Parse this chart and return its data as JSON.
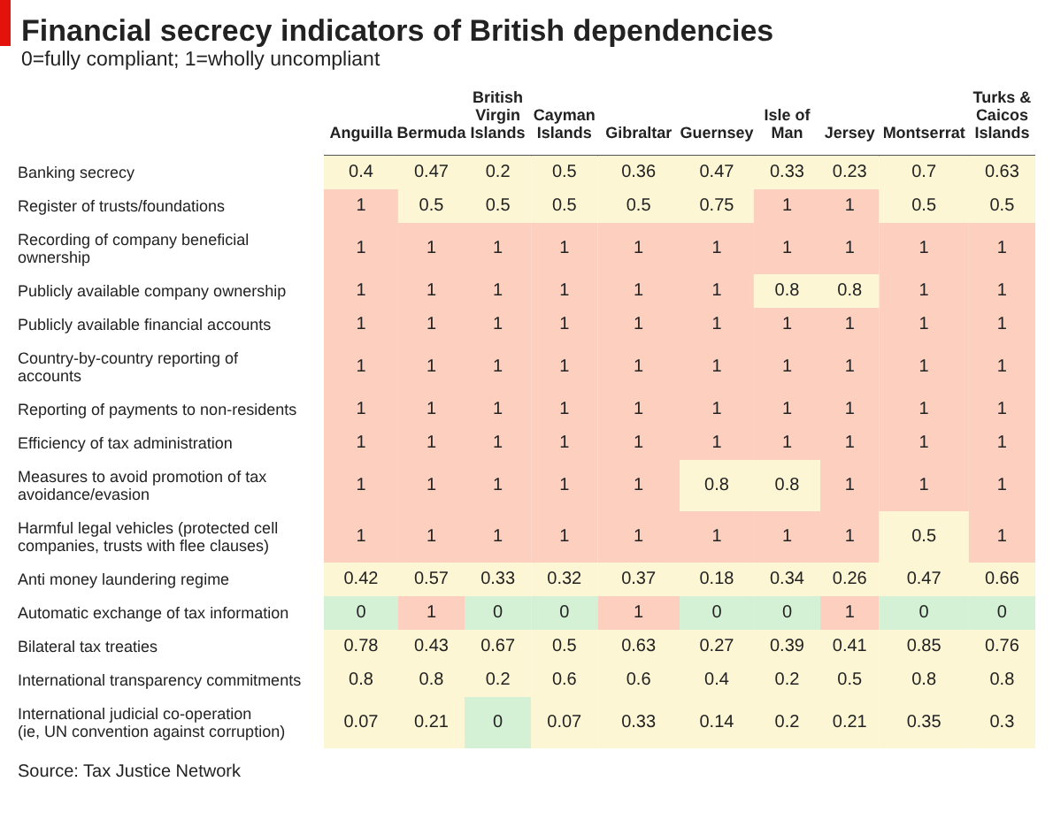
{
  "chart_data": {
    "type": "heatmap",
    "title": "Financial secrecy indicators of British dependencies",
    "subtitle": "0=fully compliant; 1=wholly uncompliant",
    "categories": [
      "Anguilla",
      "Bermuda",
      "British Virgin Islands",
      "Cayman Islands",
      "Gibraltar",
      "Guernsey",
      "Isle of Man",
      "Jersey",
      "Montserrat",
      "Turks & Caicos Islands"
    ],
    "y_categories": [
      "Banking secrecy",
      "Register of trusts/foundations",
      "Recording of company beneficial ownership",
      "Publicly available company ownership",
      "Publicly available financial accounts",
      "Country-by-country reporting of accounts",
      "Reporting of payments to non-residents",
      "Efficiency of tax administration",
      "Measures to avoid promotion of tax avoidance/evasion",
      "Harmful legal vehicles (protected cell companies, trusts with flee clauses)",
      "Anti money laundering regime",
      "Automatic exchange of tax information",
      "Bilateral tax treaties",
      "International transparency commitments",
      "International judicial co-operation (ie, UN convention against corruption)"
    ],
    "cells": [
      [
        0.4,
        0.47,
        0.2,
        0.5,
        0.36,
        0.47,
        0.33,
        0.23,
        0.7,
        0.63
      ],
      [
        1,
        0.5,
        0.5,
        0.5,
        0.5,
        0.75,
        1,
        1,
        0.5,
        0.5
      ],
      [
        1,
        1,
        1,
        1,
        1,
        1,
        1,
        1,
        1,
        1
      ],
      [
        1,
        1,
        1,
        1,
        1,
        1,
        0.8,
        0.8,
        1,
        1
      ],
      [
        1,
        1,
        1,
        1,
        1,
        1,
        1,
        1,
        1,
        1
      ],
      [
        1,
        1,
        1,
        1,
        1,
        1,
        1,
        1,
        1,
        1
      ],
      [
        1,
        1,
        1,
        1,
        1,
        1,
        1,
        1,
        1,
        1
      ],
      [
        1,
        1,
        1,
        1,
        1,
        1,
        1,
        1,
        1,
        1
      ],
      [
        1,
        1,
        1,
        1,
        1,
        0.8,
        0.8,
        1,
        1,
        1
      ],
      [
        1,
        1,
        1,
        1,
        1,
        1,
        1,
        1,
        0.5,
        1
      ],
      [
        0.42,
        0.57,
        0.33,
        0.32,
        0.37,
        0.18,
        0.34,
        0.26,
        0.47,
        0.66
      ],
      [
        0,
        1,
        0,
        0,
        1,
        0,
        0,
        1,
        0,
        0
      ],
      [
        0.78,
        0.43,
        0.67,
        0.5,
        0.63,
        0.27,
        0.39,
        0.41,
        0.85,
        0.76
      ],
      [
        0.8,
        0.8,
        0.2,
        0.6,
        0.6,
        0.4,
        0.2,
        0.5,
        0.8,
        0.8
      ],
      [
        0.07,
        0.21,
        0,
        0.07,
        0.33,
        0.14,
        0.2,
        0.21,
        0.35,
        0.3
      ]
    ],
    "colors": [
      "#d4f0d5",
      "#fdf6d4",
      "#fccfbf"
    ],
    "data_labels": true,
    "annotations": [
      "Source: Tax Justice Network"
    ]
  }
}
